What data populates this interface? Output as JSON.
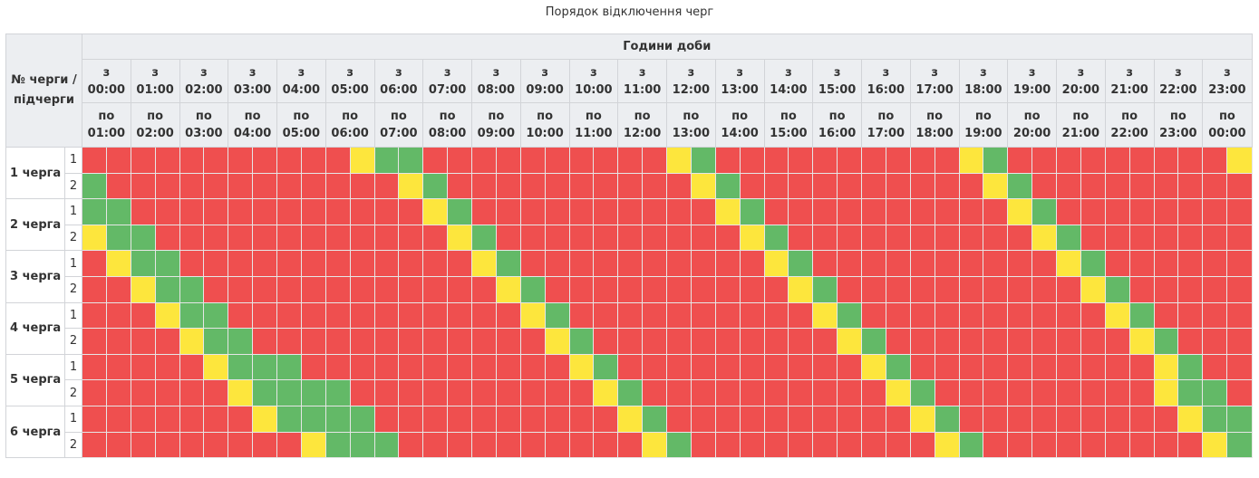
{
  "title": "Порядок відключення черг",
  "header": {
    "corner": "№ черги / підчерги",
    "hours": "Години доби",
    "from_prefix": "з",
    "to_prefix": "по",
    "columns": [
      {
        "from": "00:00",
        "to": "01:00"
      },
      {
        "from": "01:00",
        "to": "02:00"
      },
      {
        "from": "02:00",
        "to": "03:00"
      },
      {
        "from": "03:00",
        "to": "04:00"
      },
      {
        "from": "04:00",
        "to": "05:00"
      },
      {
        "from": "05:00",
        "to": "06:00"
      },
      {
        "from": "06:00",
        "to": "07:00"
      },
      {
        "from": "07:00",
        "to": "08:00"
      },
      {
        "from": "08:00",
        "to": "09:00"
      },
      {
        "from": "09:00",
        "to": "10:00"
      },
      {
        "from": "10:00",
        "to": "11:00"
      },
      {
        "from": "11:00",
        "to": "12:00"
      },
      {
        "from": "12:00",
        "to": "13:00"
      },
      {
        "from": "13:00",
        "to": "14:00"
      },
      {
        "from": "14:00",
        "to": "15:00"
      },
      {
        "from": "15:00",
        "to": "16:00"
      },
      {
        "from": "16:00",
        "to": "17:00"
      },
      {
        "from": "17:00",
        "to": "18:00"
      },
      {
        "from": "18:00",
        "to": "19:00"
      },
      {
        "from": "19:00",
        "to": "20:00"
      },
      {
        "from": "20:00",
        "to": "21:00"
      },
      {
        "from": "21:00",
        "to": "22:00"
      },
      {
        "from": "22:00",
        "to": "23:00"
      },
      {
        "from": "23:00",
        "to": "00:00"
      }
    ]
  },
  "colors": {
    "r": "#ef4f4f",
    "g": "#63b967",
    "y": "#fde63d"
  },
  "groups": [
    {
      "label": "1 черга",
      "subrows": [
        {
          "label": "1",
          "cells": [
            "r",
            "r",
            "r",
            "r",
            "r",
            "r",
            "r",
            "r",
            "r",
            "r",
            "r",
            "y",
            "g",
            "g",
            "r",
            "r",
            "r",
            "r",
            "r",
            "r",
            "r",
            "r",
            "r",
            "r",
            "y",
            "g",
            "r",
            "r",
            "r",
            "r",
            "r",
            "r",
            "r",
            "r",
            "r",
            "r",
            "y",
            "g",
            "r",
            "r",
            "r",
            "r",
            "r",
            "r",
            "r",
            "r",
            "r",
            "y"
          ]
        },
        {
          "label": "2",
          "cells": [
            "g",
            "r",
            "r",
            "r",
            "r",
            "r",
            "r",
            "r",
            "r",
            "r",
            "r",
            "r",
            "r",
            "y",
            "g",
            "r",
            "r",
            "r",
            "r",
            "r",
            "r",
            "r",
            "r",
            "r",
            "r",
            "y",
            "g",
            "r",
            "r",
            "r",
            "r",
            "r",
            "r",
            "r",
            "r",
            "r",
            "r",
            "y",
            "g",
            "r",
            "r",
            "r",
            "r",
            "r",
            "r",
            "r",
            "r",
            "r"
          ]
        }
      ]
    },
    {
      "label": "2 черга",
      "subrows": [
        {
          "label": "1",
          "cells": [
            "g",
            "g",
            "r",
            "r",
            "r",
            "r",
            "r",
            "r",
            "r",
            "r",
            "r",
            "r",
            "r",
            "r",
            "y",
            "g",
            "r",
            "r",
            "r",
            "r",
            "r",
            "r",
            "r",
            "r",
            "r",
            "r",
            "y",
            "g",
            "r",
            "r",
            "r",
            "r",
            "r",
            "r",
            "r",
            "r",
            "r",
            "r",
            "y",
            "g",
            "r",
            "r",
            "r",
            "r",
            "r",
            "r",
            "r",
            "r"
          ]
        },
        {
          "label": "2",
          "cells": [
            "y",
            "g",
            "g",
            "r",
            "r",
            "r",
            "r",
            "r",
            "r",
            "r",
            "r",
            "r",
            "r",
            "r",
            "r",
            "y",
            "g",
            "r",
            "r",
            "r",
            "r",
            "r",
            "r",
            "r",
            "r",
            "r",
            "r",
            "y",
            "g",
            "r",
            "r",
            "r",
            "r",
            "r",
            "r",
            "r",
            "r",
            "r",
            "r",
            "y",
            "g",
            "r",
            "r",
            "r",
            "r",
            "r",
            "r",
            "r"
          ]
        }
      ]
    },
    {
      "label": "3 черга",
      "subrows": [
        {
          "label": "1",
          "cells": [
            "r",
            "y",
            "g",
            "g",
            "r",
            "r",
            "r",
            "r",
            "r",
            "r",
            "r",
            "r",
            "r",
            "r",
            "r",
            "r",
            "y",
            "g",
            "r",
            "r",
            "r",
            "r",
            "r",
            "r",
            "r",
            "r",
            "r",
            "r",
            "y",
            "g",
            "r",
            "r",
            "r",
            "r",
            "r",
            "r",
            "r",
            "r",
            "r",
            "r",
            "y",
            "g",
            "r",
            "r",
            "r",
            "r",
            "r",
            "r"
          ]
        },
        {
          "label": "2",
          "cells": [
            "r",
            "r",
            "y",
            "g",
            "g",
            "r",
            "r",
            "r",
            "r",
            "r",
            "r",
            "r",
            "r",
            "r",
            "r",
            "r",
            "r",
            "y",
            "g",
            "r",
            "r",
            "r",
            "r",
            "r",
            "r",
            "r",
            "r",
            "r",
            "r",
            "y",
            "g",
            "r",
            "r",
            "r",
            "r",
            "r",
            "r",
            "r",
            "r",
            "r",
            "r",
            "y",
            "g",
            "r",
            "r",
            "r",
            "r",
            "r"
          ]
        }
      ]
    },
    {
      "label": "4 черга",
      "subrows": [
        {
          "label": "1",
          "cells": [
            "r",
            "r",
            "r",
            "y",
            "g",
            "g",
            "r",
            "r",
            "r",
            "r",
            "r",
            "r",
            "r",
            "r",
            "r",
            "r",
            "r",
            "r",
            "y",
            "g",
            "r",
            "r",
            "r",
            "r",
            "r",
            "r",
            "r",
            "r",
            "r",
            "r",
            "y",
            "g",
            "r",
            "r",
            "r",
            "r",
            "r",
            "r",
            "r",
            "r",
            "r",
            "r",
            "y",
            "g",
            "r",
            "r",
            "r",
            "r"
          ]
        },
        {
          "label": "2",
          "cells": [
            "r",
            "r",
            "r",
            "r",
            "y",
            "g",
            "g",
            "r",
            "r",
            "r",
            "r",
            "r",
            "r",
            "r",
            "r",
            "r",
            "r",
            "r",
            "r",
            "y",
            "g",
            "r",
            "r",
            "r",
            "r",
            "r",
            "r",
            "r",
            "r",
            "r",
            "r",
            "y",
            "g",
            "r",
            "r",
            "r",
            "r",
            "r",
            "r",
            "r",
            "r",
            "r",
            "r",
            "y",
            "g",
            "r",
            "r",
            "r"
          ]
        }
      ]
    },
    {
      "label": "5 черга",
      "subrows": [
        {
          "label": "1",
          "cells": [
            "r",
            "r",
            "r",
            "r",
            "r",
            "y",
            "g",
            "g",
            "g",
            "r",
            "r",
            "r",
            "r",
            "r",
            "r",
            "r",
            "r",
            "r",
            "r",
            "r",
            "y",
            "g",
            "r",
            "r",
            "r",
            "r",
            "r",
            "r",
            "r",
            "r",
            "r",
            "r",
            "y",
            "g",
            "r",
            "r",
            "r",
            "r",
            "r",
            "r",
            "r",
            "r",
            "r",
            "r",
            "y",
            "g",
            "r",
            "r"
          ]
        },
        {
          "label": "2",
          "cells": [
            "r",
            "r",
            "r",
            "r",
            "r",
            "r",
            "y",
            "g",
            "g",
            "g",
            "g",
            "r",
            "r",
            "r",
            "r",
            "r",
            "r",
            "r",
            "r",
            "r",
            "r",
            "y",
            "g",
            "r",
            "r",
            "r",
            "r",
            "r",
            "r",
            "r",
            "r",
            "r",
            "r",
            "y",
            "g",
            "r",
            "r",
            "r",
            "r",
            "r",
            "r",
            "r",
            "r",
            "r",
            "y",
            "g",
            "g",
            "r"
          ]
        }
      ]
    },
    {
      "label": "6 черга",
      "subrows": [
        {
          "label": "1",
          "cells": [
            "r",
            "r",
            "r",
            "r",
            "r",
            "r",
            "r",
            "y",
            "g",
            "g",
            "g",
            "g",
            "r",
            "r",
            "r",
            "r",
            "r",
            "r",
            "r",
            "r",
            "r",
            "r",
            "y",
            "g",
            "r",
            "r",
            "r",
            "r",
            "r",
            "r",
            "r",
            "r",
            "r",
            "r",
            "y",
            "g",
            "r",
            "r",
            "r",
            "r",
            "r",
            "r",
            "r",
            "r",
            "r",
            "y",
            "g",
            "g"
          ]
        },
        {
          "label": "2",
          "cells": [
            "r",
            "r",
            "r",
            "r",
            "r",
            "r",
            "r",
            "r",
            "r",
            "y",
            "g",
            "g",
            "g",
            "r",
            "r",
            "r",
            "r",
            "r",
            "r",
            "r",
            "r",
            "r",
            "r",
            "y",
            "g",
            "r",
            "r",
            "r",
            "r",
            "r",
            "r",
            "r",
            "r",
            "r",
            "r",
            "y",
            "g",
            "r",
            "r",
            "r",
            "r",
            "r",
            "r",
            "r",
            "r",
            "r",
            "y",
            "g"
          ]
        }
      ]
    }
  ]
}
